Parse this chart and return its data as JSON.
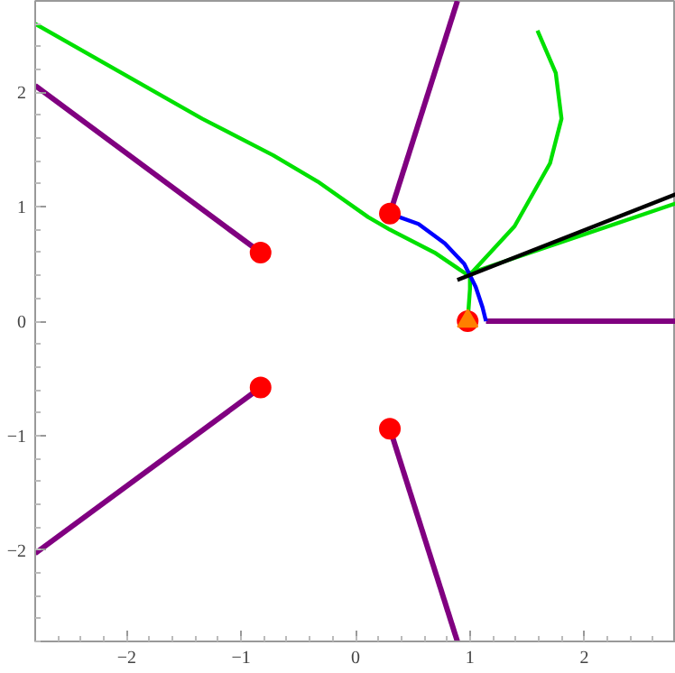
{
  "chart_data": {
    "type": "line",
    "xlim": [
      -2.8,
      2.8
    ],
    "ylim": [
      -2.8,
      2.8
    ],
    "xticks": [
      {
        "value": -2,
        "label": "−2"
      },
      {
        "value": -1,
        "label": "−1"
      },
      0,
      1,
      2
    ],
    "yticks": [
      {
        "value": -2,
        "label": "−2"
      },
      {
        "value": -1,
        "label": "−1"
      },
      0,
      1,
      2
    ],
    "grid": false,
    "series": [
      {
        "color": "#00e000",
        "x": [
          -2.8,
          -1.34,
          -0.72,
          -0.33,
          0.11,
          0.3,
          0.69,
          0.97,
          2.8
        ],
        "values": [
          2.6,
          1.77,
          1.45,
          1.22,
          0.91,
          0.8,
          0.6,
          0.41,
          1.03
        ]
      },
      {
        "color": "#00e000",
        "x": [
          0.98,
          1.0,
          1.0,
          1.03,
          1.39,
          1.7,
          1.8,
          1.75,
          1.59
        ],
        "values": [
          0.0,
          0.28,
          0.41,
          0.44,
          0.83,
          1.38,
          1.77,
          2.17,
          2.54
        ]
      },
      {
        "color": "#800080",
        "x": [
          -0.83,
          -2.8
        ],
        "values": [
          0.6,
          2.06
        ]
      },
      {
        "color": "#800080",
        "x": [
          -0.83,
          -2.8
        ],
        "values": [
          -0.58,
          -2.03
        ]
      },
      {
        "color": "#800080",
        "x": [
          0.3,
          0.89
        ],
        "values": [
          0.94,
          2.8
        ]
      },
      {
        "color": "#800080",
        "x": [
          0.3,
          0.89
        ],
        "values": [
          -0.94,
          -2.8
        ]
      },
      {
        "color": "#800080",
        "x": [
          1.14,
          2.8
        ],
        "values": [
          0.0,
          0.0
        ]
      },
      {
        "color": "#0000ff",
        "x": [
          0.3,
          0.55,
          0.78,
          0.95,
          1.05,
          1.11,
          1.14
        ],
        "values": [
          0.94,
          0.85,
          0.68,
          0.5,
          0.3,
          0.12,
          0.0
        ]
      },
      {
        "color": "#000000",
        "x": [
          0.89,
          2.8
        ],
        "values": [
          0.36,
          1.11
        ]
      },
      {
        "type": "scatter",
        "marker": "circle",
        "color": "#ff0000",
        "x": [
          -0.83,
          0.3,
          -0.83,
          0.3,
          0.98
        ],
        "values": [
          0.6,
          0.94,
          -0.58,
          -0.94,
          0.0
        ]
      },
      {
        "type": "scatter",
        "marker": "triangle",
        "color": "#ff8000",
        "x": [
          0.98
        ],
        "values": [
          0.0
        ]
      }
    ]
  }
}
